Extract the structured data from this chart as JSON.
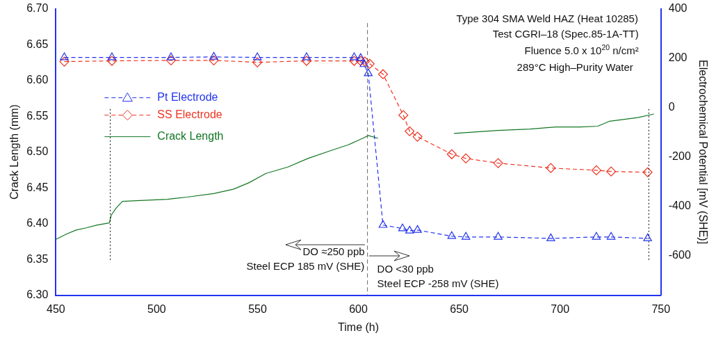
{
  "chart_data": {
    "type": "line",
    "xlabel": "Time (h)",
    "ylabel": "Crack Length (mm)",
    "y2label": "Electrochemical Potential [mV (SHE)]",
    "xlim": [
      450,
      750
    ],
    "xticks": [
      450,
      500,
      550,
      600,
      650,
      700,
      750
    ],
    "ylim": [
      6.3,
      6.7
    ],
    "yticks": [
      {
        "value": 6.3,
        "label": "6.30"
      },
      {
        "value": 6.35,
        "label": "6.35"
      },
      {
        "value": 6.4,
        "label": "6.40"
      },
      {
        "value": 6.45,
        "label": "6.45"
      },
      {
        "value": 6.5,
        "label": "6.50"
      },
      {
        "value": 6.55,
        "label": "6.55"
      },
      {
        "value": 6.6,
        "label": "6.60"
      },
      {
        "value": 6.65,
        "label": "6.65"
      },
      {
        "value": 6.7,
        "label": "6.70"
      }
    ],
    "y2lim": [
      -760,
      400
    ],
    "y2ticks": [
      -600,
      -400,
      -200,
      0,
      200,
      400
    ],
    "grid": false,
    "legend": "top left",
    "series": [
      {
        "name": "Pt Electrode",
        "color": "#2233ee",
        "axis": "y2",
        "marker": "triangle",
        "line_style": "dashed",
        "x": [
          454.2,
          477.8,
          507.1,
          528.3,
          549.9,
          574.3,
          597.9,
          601.1,
          602.8,
          604.9,
          612.2,
          621.9,
          625.4,
          629.3,
          646.3,
          653.3,
          669.3,
          695.4,
          718,
          725.3,
          743.4
        ],
        "values": [
          203,
          203,
          203,
          205,
          203,
          203,
          203,
          200,
          175,
          138,
          -476,
          -490,
          -499,
          -496,
          -521,
          -524,
          -524,
          -530,
          -524,
          -524,
          -530
        ]
      },
      {
        "name": "SS Electrode",
        "color": "#ee3322",
        "axis": "y2",
        "marker": "diamond",
        "line_style": "dashed",
        "x": [
          454.2,
          477.8,
          507.1,
          528.3,
          549.9,
          574.3,
          597.9,
          601.1,
          603.2,
          605.6,
          612.2,
          622.3,
          625.4,
          629.3,
          646.3,
          653.3,
          669.3,
          695.4,
          718,
          725.3,
          743.4
        ],
        "values": [
          186,
          189,
          191,
          191,
          183,
          189,
          189,
          189,
          186,
          177,
          135,
          -31,
          -96,
          -118,
          -189,
          -206,
          -225,
          -245,
          -254,
          -259,
          -262
        ]
      },
      {
        "name": "Crack Length",
        "color": "#117722",
        "marker": "none",
        "line_style": "solid",
        "x": [
          450,
          455,
          460,
          465,
          470.5,
          476.5,
          477.5,
          480,
          483,
          490,
          505.3,
          515,
          528.3,
          538,
          545.7,
          554.1,
          565,
          575,
          586.4,
          595,
          602.8,
          604.9,
          609.8,
          628,
          647.4,
          668.9,
          685,
          697.8,
          710,
          718.7,
          724.6,
          738.5,
          746.5
        ],
        "values": [
          6.378,
          6.385,
          6.391,
          6.394,
          6.398,
          6.401,
          6.412,
          6.422,
          6.431,
          6.432,
          6.434,
          6.437,
          6.442,
          6.448,
          6.457,
          6.47,
          6.479,
          6.491,
          6.502,
          6.51,
          6.52,
          6.523,
          6.519,
          null,
          6.526,
          6.53,
          6.532,
          6.535,
          6.535,
          6.536,
          6.543,
          6.548,
          6.553
        ]
      }
    ],
    "ref_lines": [
      {
        "axis": "x",
        "value": 477,
        "color": "#000000",
        "line_style": "dotted"
      },
      {
        "axis": "x",
        "value": 604.5,
        "color": "#666666",
        "line_style": "dashed"
      },
      {
        "axis": "x",
        "value": 744,
        "color": "#000000",
        "line_style": "dotted"
      }
    ],
    "annotations": [
      "Type 304 SMA Weld HAZ (Heat 10285)",
      "Test CGRI–18 (Spec.85-1A-TT)",
      "Fluence 5.0 x 10$^{20}$ n/cm²",
      "289°C High–Purity Water",
      "DO ≈250 ppb",
      "Steel ECP 185 mV (SHE)",
      "DO <30 ppb",
      "Steel ECP -258 mV (SHE)"
    ]
  }
}
